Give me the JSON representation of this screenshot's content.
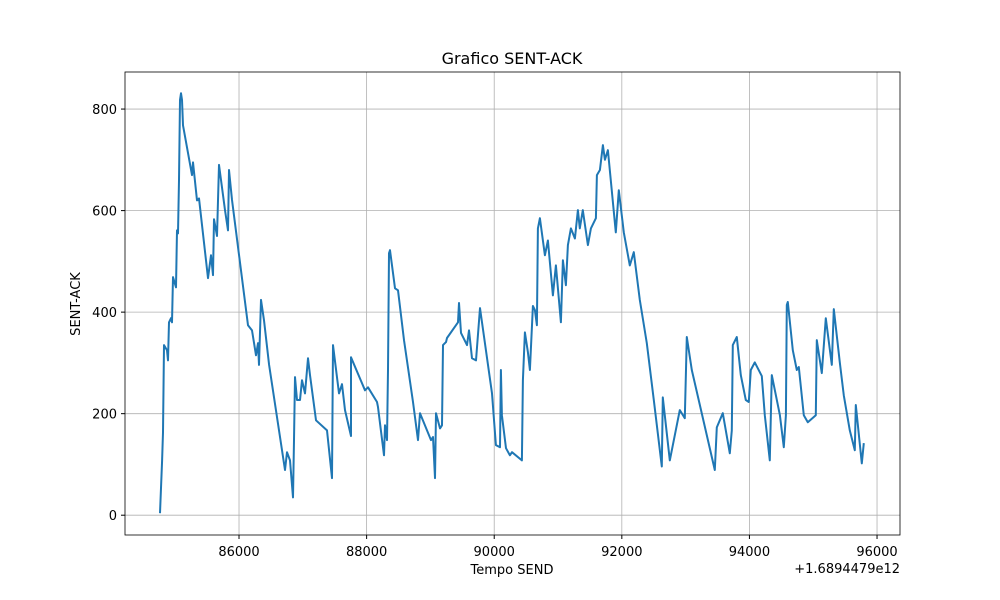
{
  "chart_data": {
    "type": "line",
    "title": "Grafico SENT-ACK",
    "xlabel": "Tempo SEND",
    "ylabel": "SENT-ACK",
    "x_offset_label": "+1.6894479e12",
    "xlim": [
      84213,
      96360
    ],
    "ylim": [
      -39,
      873
    ],
    "xticks": [
      86000,
      88000,
      90000,
      92000,
      94000,
      96000
    ],
    "yticks": [
      0,
      200,
      400,
      600,
      800
    ],
    "grid": true,
    "series": [
      {
        "name": "SENT-ACK",
        "color": "#1f77b4",
        "x": [
          84762,
          84794,
          84809,
          84825,
          84872,
          84887,
          84903,
          84934,
          84950,
          84966,
          85013,
          85028,
          85044,
          85060,
          85075,
          85091,
          85107,
          85122,
          85263,
          85279,
          85342,
          85373,
          85514,
          85561,
          85592,
          85608,
          85655,
          85686,
          85780,
          85827,
          85843,
          85890,
          86141,
          86204,
          86267,
          86298,
          86314,
          86345,
          86392,
          86471,
          86721,
          86752,
          86799,
          86846,
          86862,
          86877,
          86909,
          86956,
          86987,
          87034,
          87081,
          87112,
          87206,
          87379,
          87457,
          87473,
          87567,
          87614,
          87661,
          87755,
          87756,
          87975,
          88022,
          88163,
          88179,
          88273,
          88288,
          88320,
          88335,
          88351,
          88367,
          88445,
          88492,
          88586,
          88727,
          88806,
          88837,
          89009,
          89041,
          89072,
          89088,
          89150,
          89181,
          89197,
          89244,
          89260,
          89432,
          89448,
          89479,
          89573,
          89605,
          89652,
          89714,
          89777,
          89965,
          90027,
          90090,
          90105,
          90121,
          90184,
          90246,
          90278,
          90434,
          90450,
          90481,
          90528,
          90559,
          90607,
          90638,
          90669,
          90685,
          90716,
          90794,
          90841,
          90920,
          90967,
          91045,
          91076,
          91123,
          91155,
          91202,
          91264,
          91311,
          91342,
          91389,
          91468,
          91515,
          91593,
          91609,
          91656,
          91703,
          91734,
          91781,
          91906,
          91953,
          92031,
          92125,
          92188,
          92282,
          92392,
          92501,
          92627,
          92642,
          92752,
          92909,
          92987,
          93019,
          93097,
          93457,
          93489,
          93583,
          93692,
          93724,
          93739,
          93802,
          93865,
          93943,
          93990,
          94022,
          94084,
          94194,
          94241,
          94320,
          94351,
          94477,
          94539,
          94571,
          94586,
          94602,
          94680,
          94743,
          94774,
          94852,
          94915,
          95040,
          95056,
          95134,
          95197,
          95291,
          95322,
          95416,
          95479,
          95573,
          95652,
          95667,
          95761,
          95793
        ],
        "values": [
          4,
          108,
          163,
          335,
          325,
          305,
          380,
          388,
          380,
          469,
          449,
          561,
          555,
          660,
          818,
          831,
          818,
          768,
          670,
          695,
          620,
          624,
          467,
          512,
          473,
          583,
          550,
          690,
          601,
          561,
          680,
          621,
          374,
          364,
          315,
          339,
          296,
          424,
          384,
          296,
          89,
          124,
          108,
          35,
          148,
          272,
          227,
          227,
          266,
          240,
          309,
          276,
          187,
          167,
          73,
          335,
          240,
          258,
          207,
          156,
          311,
          246,
          252,
          223,
          213,
          118,
          177,
          148,
          286,
          516,
          522,
          447,
          443,
          345,
          223,
          148,
          201,
          148,
          154,
          73,
          201,
          171,
          177,
          335,
          341,
          349,
          380,
          418,
          359,
          335,
          364,
          309,
          305,
          408,
          240,
          138,
          134,
          286,
          197,
          132,
          118,
          124,
          108,
          266,
          360,
          321,
          286,
          412,
          404,
          374,
          565,
          585,
          512,
          541,
          433,
          492,
          380,
          502,
          453,
          532,
          565,
          545,
          601,
          565,
          601,
          532,
          565,
          585,
          670,
          680,
          729,
          700,
          719,
          557,
          640,
          557,
          492,
          518,
          424,
          339,
          227,
          96,
          232,
          108,
          207,
          191,
          351,
          286,
          89,
          173,
          201,
          122,
          167,
          335,
          351,
          276,
          227,
          223,
          286,
          301,
          274,
          197,
          108,
          276,
          197,
          134,
          197,
          414,
          420,
          325,
          286,
          292,
          197,
          183,
          197,
          345,
          280,
          388,
          296,
          406,
          301,
          236,
          167,
          128,
          217,
          102,
          142
        ]
      }
    ]
  }
}
